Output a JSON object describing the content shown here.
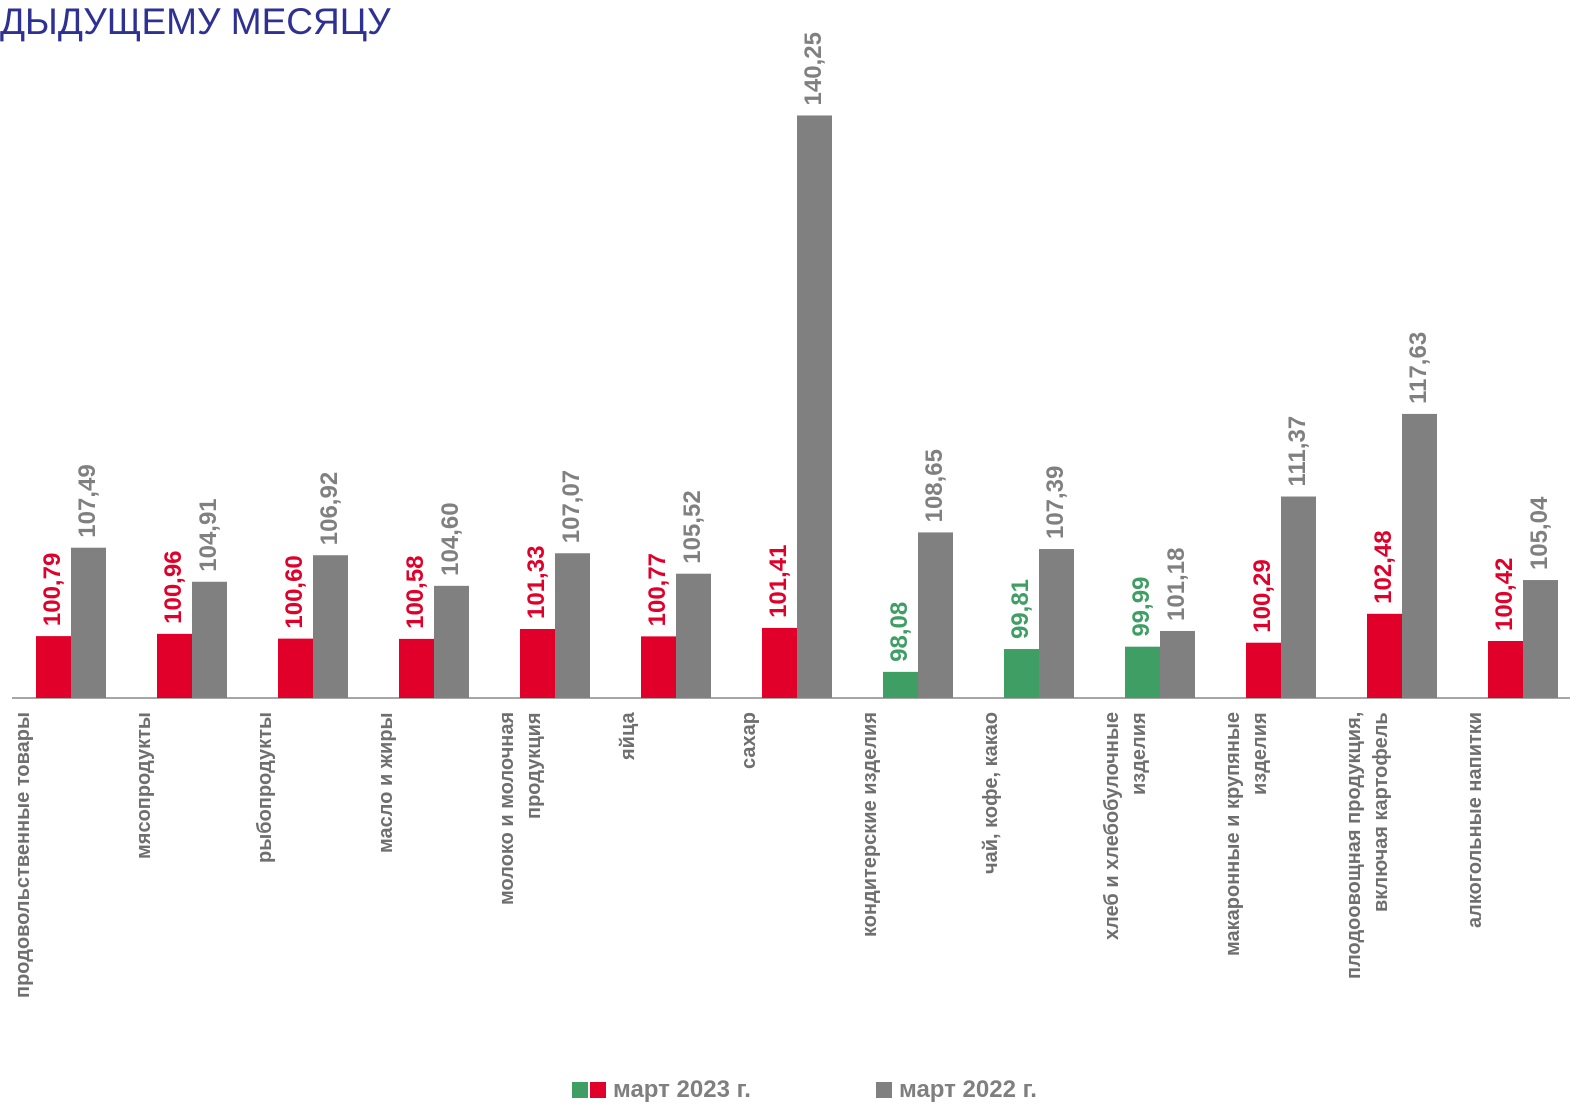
{
  "chart_data": {
    "type": "bar",
    "title": "ДЫДУЩЕМУ МЕСЯЦУ",
    "categories": [
      "продовольственные товары",
      "мясопродукты",
      "рыбопродукты",
      "масло и жиры",
      "молоко и молочная\nпродукция",
      "яйца",
      "сахар",
      "кондитерские изделия",
      "чай, кофе, какао",
      "хлеб и хлебобулочные\nизделия",
      "макаронные и крупяные\nизделия",
      "плодоовощная продукция,\nвключая картофель",
      "алкогольные напитки"
    ],
    "series": [
      {
        "name": "март 2023 г.",
        "color": "#e0002a",
        "colors": [
          "#e0002a",
          "#e0002a",
          "#e0002a",
          "#e0002a",
          "#e0002a",
          "#e0002a",
          "#e0002a",
          "#3f9e63",
          "#3f9e63",
          "#3f9e63",
          "#e0002a",
          "#e0002a",
          "#e0002a"
        ],
        "values": [
          100.79,
          100.96,
          100.6,
          100.58,
          101.33,
          100.77,
          101.41,
          98.08,
          99.81,
          99.99,
          100.29,
          102.48,
          100.42
        ],
        "value_labels": [
          "100,79",
          "100,96",
          "100,60",
          "100,58",
          "101,33",
          "100,77",
          "101,41",
          "98,08",
          "99,81",
          "99,99",
          "100,29",
          "102,48",
          "100,42"
        ]
      },
      {
        "name": "март 2022 г.",
        "color": "#808080",
        "values": [
          107.49,
          104.91,
          106.92,
          104.6,
          107.07,
          105.52,
          140.25,
          108.65,
          107.39,
          101.18,
          111.37,
          117.63,
          105.04
        ],
        "value_labels": [
          "107,49",
          "104,91",
          "106,92",
          "104,60",
          "107,07",
          "105,52",
          "140,25",
          "108,65",
          "107,39",
          "101,18",
          "111,37",
          "117,63",
          "105,04"
        ]
      }
    ],
    "ylim": [
      96.1,
      149.0
    ]
  }
}
